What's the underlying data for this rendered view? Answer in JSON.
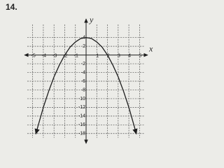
{
  "chart_data": {
    "type": "line",
    "title": "14.",
    "x_label": "x",
    "y_label": "y",
    "x": [
      -4.7,
      -4.5,
      -4,
      -3.5,
      -3,
      -2.5,
      -2,
      -1.5,
      -1,
      -0.5,
      0,
      0.5,
      1,
      1.5,
      2,
      2.5,
      3,
      3.5,
      4,
      4.5,
      4.7
    ],
    "values": [
      -18.1,
      -16.3,
      -12,
      -8.3,
      -5,
      -2.3,
      0,
      1.8,
      3,
      3.8,
      4,
      3.8,
      3,
      1.8,
      0,
      -2.3,
      -5,
      -8.3,
      -12,
      -16.3,
      -18.1
    ],
    "color": "#1e1e1e",
    "xlim": [
      -5.5,
      5.5
    ],
    "ylim": [
      -19,
      7
    ],
    "xticks": [
      -5,
      -4,
      -3,
      -2,
      -1,
      1,
      2,
      3,
      4,
      5
    ],
    "yticks": [
      4,
      2,
      -2,
      -4,
      -6,
      -8,
      -10,
      -12,
      -14,
      -16,
      -18
    ],
    "grid": true
  }
}
